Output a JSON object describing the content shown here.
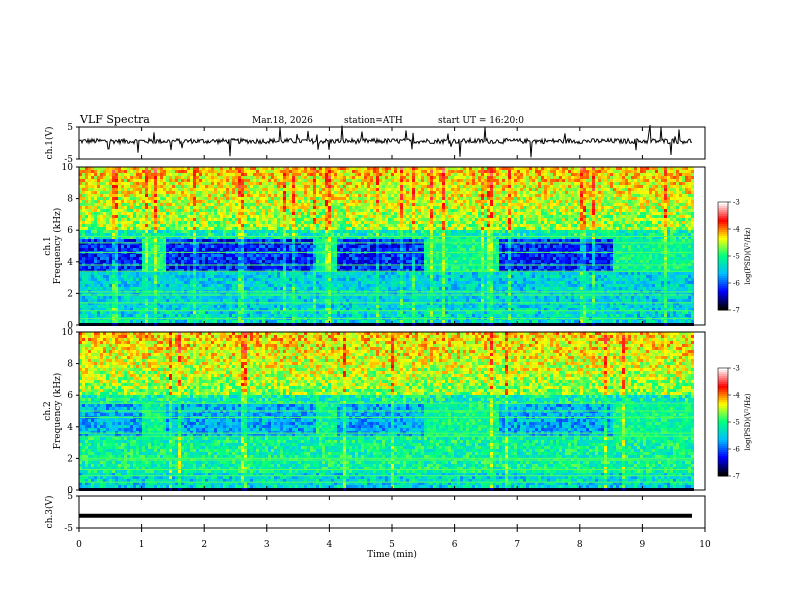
{
  "header": {
    "title": "VLF Spectra",
    "date": "Mar.18, 2026",
    "station": "station=ATH",
    "start": "start UT =  16:20:0"
  },
  "chart_data": {
    "type": "heatmap",
    "x_axis": {
      "label": "Time (min)",
      "range": [
        0,
        10
      ],
      "ticks": [
        "0",
        "1",
        "2",
        "3",
        "4",
        "5",
        "6",
        "7",
        "8",
        "9",
        "10"
      ]
    },
    "panels": [
      {
        "id": "ch1-waveform",
        "type": "line",
        "ylabel": "ch.1(V)",
        "ylim": [
          -5,
          5
        ],
        "yticks": [
          "5",
          "-5"
        ],
        "baseline_v": 0.6,
        "color": "#000000"
      },
      {
        "id": "ch1-spectrogram",
        "type": "heatmap",
        "ylabel_channel": "ch.1",
        "ylabel": "Frequency (kHz)",
        "ylim": [
          0,
          10
        ],
        "yticks": [
          "0",
          "2",
          "4",
          "6",
          "8",
          "10"
        ],
        "bright_intervals_min": [
          [
            1.0,
            1.35
          ],
          [
            3.75,
            4.1
          ],
          [
            5.5,
            6.7
          ],
          [
            8.5,
            9.8
          ]
        ],
        "tone_lines_khz": [
          0.4,
          0.9,
          1.4,
          1.9,
          2.1,
          3.4,
          3.8,
          4.6,
          5.2,
          5.6
        ],
        "data_end_min": 9.8
      },
      {
        "id": "ch2-spectrogram",
        "type": "heatmap",
        "ylabel_channel": "ch.2",
        "ylabel": "Frequency (kHz)",
        "ylim": [
          0,
          10
        ],
        "yticks": [
          "0",
          "2",
          "4",
          "6",
          "8",
          "10"
        ],
        "bright_intervals_min": [
          [
            1.0,
            1.35
          ],
          [
            3.75,
            4.1
          ],
          [
            5.5,
            6.7
          ],
          [
            8.5,
            9.8
          ]
        ],
        "tone_lines_khz": [
          0.5,
          0.9,
          1.3,
          1.9,
          2.0,
          3.4,
          3.6,
          4.6,
          5.0,
          5.5
        ],
        "data_end_min": 9.8
      },
      {
        "id": "ch3-waveform",
        "type": "line",
        "ylabel": "ch.3(V)",
        "ylim": [
          -5,
          5
        ],
        "yticks": [
          "5",
          "-5"
        ],
        "baseline_v": -1.2,
        "color": "#000000"
      }
    ],
    "colorbar": {
      "label": "log(PSD)(V²/Hz)",
      "range": [
        -7,
        -3
      ],
      "ticks": [
        "-3",
        "-4",
        "-5",
        "-6",
        "-7"
      ],
      "colors": [
        "#000000",
        "#0000ff",
        "#00bfff",
        "#00ff7f",
        "#ffff00",
        "#ff0000",
        "#ffffff"
      ]
    }
  }
}
